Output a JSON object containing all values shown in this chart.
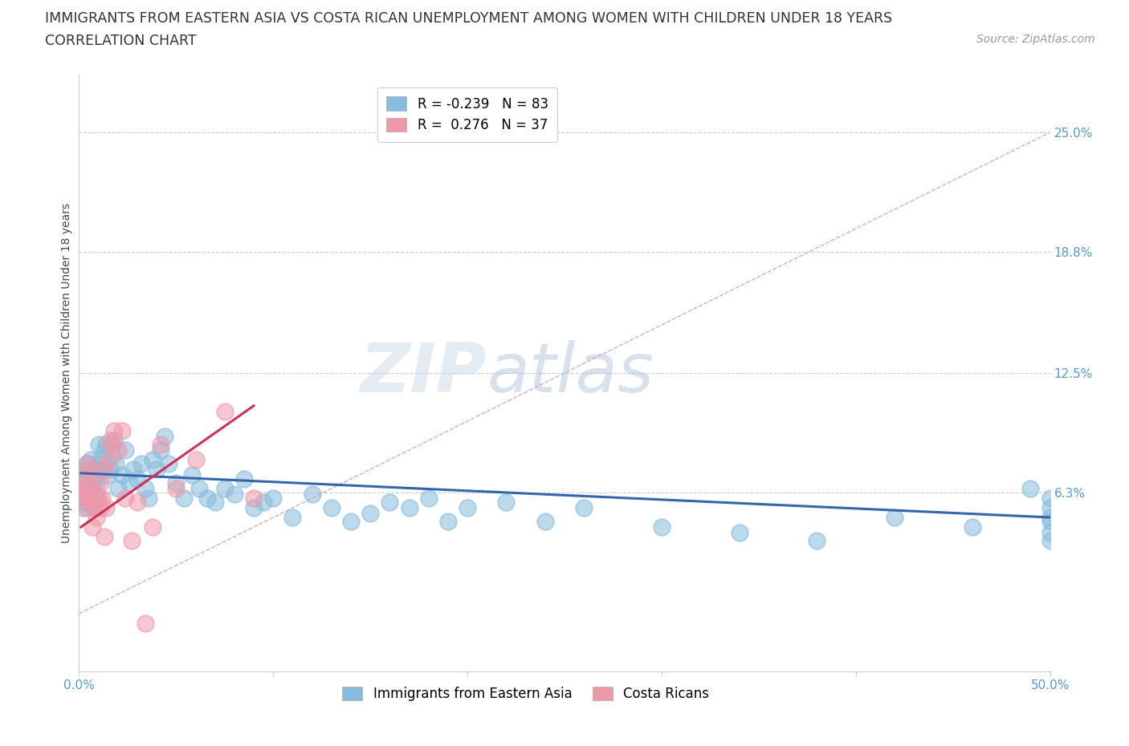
{
  "title_line1": "IMMIGRANTS FROM EASTERN ASIA VS COSTA RICAN UNEMPLOYMENT AMONG WOMEN WITH CHILDREN UNDER 18 YEARS",
  "title_line2": "CORRELATION CHART",
  "source_text": "Source: ZipAtlas.com",
  "ylabel": "Unemployment Among Women with Children Under 18 years",
  "xlim": [
    0.0,
    0.5
  ],
  "ylim": [
    -0.03,
    0.28
  ],
  "ytick_vals": [
    0.063,
    0.125,
    0.188,
    0.25
  ],
  "ytick_labels": [
    "6.3%",
    "12.5%",
    "18.8%",
    "25.0%"
  ],
  "xtick_vals": [
    0.0,
    0.1,
    0.2,
    0.3,
    0.4,
    0.5
  ],
  "xtick_labels": [
    "0.0%",
    "",
    "",
    "",
    "",
    "50.0%"
  ],
  "grid_color": "#cccccc",
  "background_color": "#ffffff",
  "ref_line_color": "#ccaaaa",
  "series": [
    {
      "name": "Immigrants from Eastern Asia",
      "R": -0.239,
      "N": 83,
      "color": "#88bbdd",
      "trend_color": "#3366aa",
      "x": [
        0.001,
        0.002,
        0.002,
        0.003,
        0.003,
        0.003,
        0.004,
        0.004,
        0.005,
        0.005,
        0.005,
        0.006,
        0.006,
        0.006,
        0.007,
        0.007,
        0.008,
        0.008,
        0.009,
        0.009,
        0.01,
        0.01,
        0.011,
        0.011,
        0.012,
        0.013,
        0.014,
        0.015,
        0.016,
        0.017,
        0.018,
        0.019,
        0.02,
        0.022,
        0.024,
        0.026,
        0.028,
        0.03,
        0.032,
        0.034,
        0.036,
        0.038,
        0.04,
        0.042,
        0.044,
        0.046,
        0.05,
        0.054,
        0.058,
        0.062,
        0.066,
        0.07,
        0.075,
        0.08,
        0.085,
        0.09,
        0.095,
        0.1,
        0.11,
        0.12,
        0.13,
        0.14,
        0.15,
        0.16,
        0.17,
        0.18,
        0.19,
        0.2,
        0.22,
        0.24,
        0.26,
        0.3,
        0.34,
        0.38,
        0.42,
        0.46,
        0.49,
        0.5,
        0.5,
        0.5,
        0.5,
        0.5,
        0.5
      ],
      "y": [
        0.065,
        0.068,
        0.072,
        0.058,
        0.075,
        0.06,
        0.055,
        0.078,
        0.058,
        0.07,
        0.062,
        0.074,
        0.068,
        0.08,
        0.065,
        0.055,
        0.07,
        0.072,
        0.068,
        0.06,
        0.075,
        0.088,
        0.078,
        0.08,
        0.075,
        0.085,
        0.088,
        0.072,
        0.075,
        0.082,
        0.09,
        0.078,
        0.065,
        0.072,
        0.085,
        0.068,
        0.075,
        0.07,
        0.078,
        0.065,
        0.06,
        0.08,
        0.075,
        0.085,
        0.092,
        0.078,
        0.068,
        0.06,
        0.072,
        0.065,
        0.06,
        0.058,
        0.065,
        0.062,
        0.07,
        0.055,
        0.058,
        0.06,
        0.05,
        0.062,
        0.055,
        0.048,
        0.052,
        0.058,
        0.055,
        0.06,
        0.048,
        0.055,
        0.058,
        0.048,
        0.055,
        0.045,
        0.042,
        0.038,
        0.05,
        0.045,
        0.065,
        0.06,
        0.055,
        0.05,
        0.048,
        0.042,
        0.038
      ],
      "trend_x": [
        0.001,
        0.5
      ],
      "trend_y": [
        0.073,
        0.05
      ]
    },
    {
      "name": "Costa Ricans",
      "R": 0.276,
      "N": 37,
      "color": "#ee99aa",
      "trend_color": "#cc3355",
      "x": [
        0.001,
        0.002,
        0.003,
        0.003,
        0.004,
        0.004,
        0.005,
        0.005,
        0.006,
        0.006,
        0.007,
        0.008,
        0.008,
        0.009,
        0.01,
        0.011,
        0.011,
        0.012,
        0.013,
        0.013,
        0.014,
        0.015,
        0.016,
        0.017,
        0.018,
        0.02,
        0.022,
        0.024,
        0.027,
        0.03,
        0.034,
        0.038,
        0.042,
        0.05,
        0.06,
        0.075,
        0.09
      ],
      "y": [
        0.065,
        0.055,
        0.06,
        0.072,
        0.065,
        0.078,
        0.06,
        0.068,
        0.058,
        0.075,
        0.045,
        0.055,
        0.062,
        0.05,
        0.06,
        0.055,
        0.068,
        0.06,
        0.075,
        0.04,
        0.055,
        0.08,
        0.09,
        0.088,
        0.095,
        0.085,
        0.095,
        0.06,
        0.038,
        0.058,
        -0.005,
        0.045,
        0.088,
        0.065,
        0.08,
        0.105,
        0.06
      ],
      "trend_x": [
        0.001,
        0.09
      ],
      "trend_y": [
        0.045,
        0.108
      ]
    }
  ],
  "watermark_zip": "ZIP",
  "watermark_atlas": "atlas",
  "title_fontsize": 12.5,
  "axis_label_fontsize": 10,
  "tick_fontsize": 11,
  "legend_fontsize": 12
}
